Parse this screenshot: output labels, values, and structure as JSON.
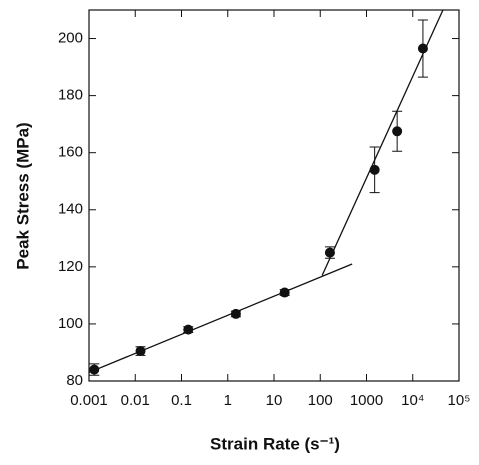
{
  "chart_data": {
    "type": "scatter",
    "xlabel": "Strain Rate (s⁻¹)",
    "ylabel": "Peak Stress (MPa)",
    "x": [
      0.0013,
      0.013,
      0.14,
      1.5,
      17,
      162,
      1500,
      4600,
      16600
    ],
    "y": [
      84,
      90.5,
      98,
      103.5,
      111,
      125,
      154,
      167.5,
      196.5
    ],
    "err": [
      2,
      1.5,
      1,
      1,
      1,
      2,
      8,
      7,
      10
    ],
    "color": "#111111",
    "lines": [
      {
        "x": [
          0.001,
          490
        ],
        "y": [
          83,
          121
        ]
      },
      {
        "x": [
          110,
          45000
        ],
        "y": [
          117,
          210
        ]
      }
    ],
    "xscale": "log",
    "xlim": [
      0.001,
      100000
    ],
    "ylim": [
      80,
      210
    ],
    "xticks": [
      0.001,
      0.01,
      0.1,
      1,
      10,
      100,
      1000,
      {
        "value": 10000,
        "label": "10⁴"
      },
      {
        "value": 100000,
        "label": "10⁵"
      }
    ],
    "yticks": [
      80,
      100,
      120,
      140,
      160,
      180,
      200
    ]
  }
}
